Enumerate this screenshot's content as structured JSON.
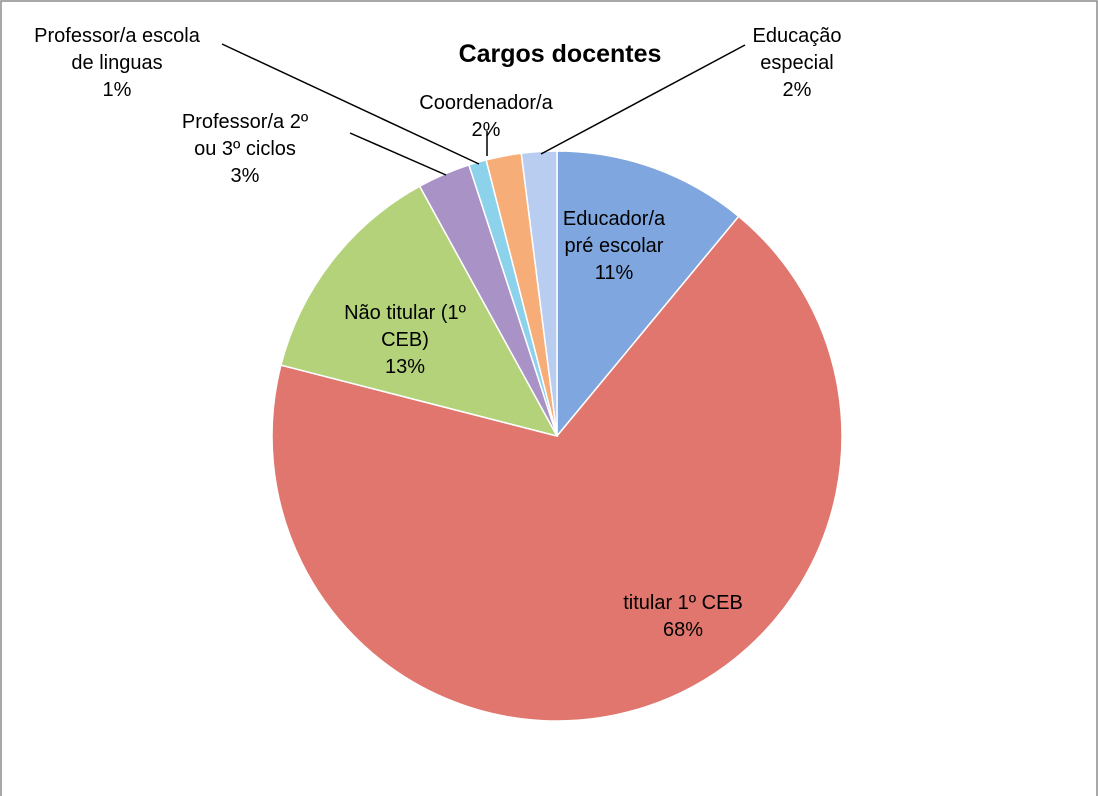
{
  "chart_data": {
    "type": "pie",
    "title": "Cargos docentes",
    "categories": [
      "Educador/a\npré escolar",
      "titular 1º CEB",
      "Não titular (1º\nCEB)",
      "Professor/a 2º\nou 3º ciclos",
      "Professor/a escola\nde linguas",
      "Coordenador/a",
      "Educação\nespecial"
    ],
    "values": [
      11,
      68,
      13,
      3,
      1,
      2,
      2
    ],
    "value_labels": [
      "11%",
      "68%",
      "13%",
      "3%",
      "1%",
      "2%",
      "2%"
    ],
    "colors": [
      "#7fa6de",
      "#e0766d",
      "#b3d27a",
      "#a992c6",
      "#8bd2ea",
      "#f7ad78",
      "#b8cdf0"
    ]
  }
}
